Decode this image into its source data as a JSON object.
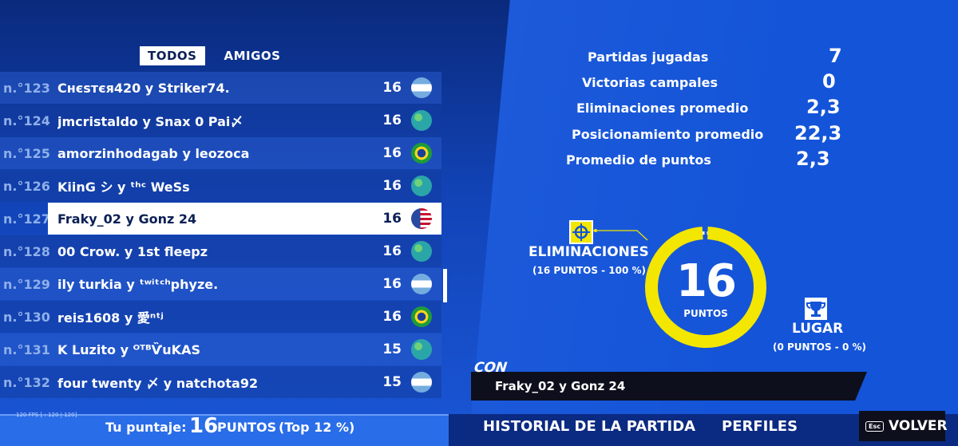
{
  "tabs": [
    {
      "label": "TODOS",
      "active": true
    },
    {
      "label": "AMIGOS",
      "active": false
    }
  ],
  "leaderboard": [
    {
      "rank": "n.°123",
      "names": "Снєѕтєя420 y Striker74.",
      "points": "16",
      "flag": "argentina-flag-icon"
    },
    {
      "rank": "n.°124",
      "names": "jmcristaldo y Snax 0 Pai〆",
      "points": "16",
      "flag": "globe-icon"
    },
    {
      "rank": "n.°125",
      "names": "amorzinhodagab y leozoca",
      "points": "16",
      "flag": "brazil-flag-icon"
    },
    {
      "rank": "n.°126",
      "names": "KiinG シ y ᵗʰᶜ WeSs",
      "points": "16",
      "flag": "globe-icon"
    },
    {
      "rank": "n.°127",
      "names": "Fraky_02 y Gonz 24",
      "points": "16",
      "flag": "usa-flag-icon",
      "highlighted": true
    },
    {
      "rank": "n.°128",
      "names": "00 Crow. y 1st fleepz",
      "points": "16",
      "flag": "globe-icon"
    },
    {
      "rank": "n.°129",
      "names": "ily turkia y ᵗʷⁱᵗᶜʰphyze.",
      "points": "16",
      "flag": "argentina-flag-icon"
    },
    {
      "rank": "n.°130",
      "names": "reis1608 y 愛ⁿᵗʲ",
      "points": "16",
      "flag": "brazil-flag-icon"
    },
    {
      "rank": "n.°131",
      "names": "K Luzito y ᴼᵀᴮѶuKAS",
      "points": "15",
      "flag": "globe-icon"
    },
    {
      "rank": "n.°132",
      "names": "four twenty 〆 y natchota92",
      "points": "15",
      "flag": "argentina-flag-icon"
    }
  ],
  "stats": [
    {
      "label": "Partidas jugadas",
      "value": "7"
    },
    {
      "label": "Victorias campales",
      "value": "0"
    },
    {
      "label": "Eliminaciones promedio",
      "value": "2,3"
    },
    {
      "label": "Posicionamiento promedio",
      "value": "22,3"
    },
    {
      "label": "Promedio de puntos",
      "value": "2,3"
    }
  ],
  "ring": {
    "value": "16",
    "unit": "PUNTOS",
    "elim_share": 1.0,
    "colors": {
      "fill": "#f3e600",
      "track": "#ffffff"
    }
  },
  "eliminations": {
    "label": "ELIMINACIONES",
    "sub": "(16 PUNTOS - 100 %)"
  },
  "placement": {
    "label": "LUGAR",
    "sub": "(0 PUNTOS - 0 %)"
  },
  "con": {
    "label": "CON",
    "name": "Fraky_02 y Gonz 24"
  },
  "score": {
    "label": "Tu puntaje:",
    "value": "16",
    "unit": "PUNTOS",
    "top": "(Top 12 %)"
  },
  "fps": "120 FPS [ : 120 | 120]",
  "buttons": {
    "history": "HISTORIAL DE LA PARTIDA",
    "profiles": "PERFILES",
    "back": "VOLVER",
    "esc": "Esc"
  },
  "colors": {
    "accent": "#f3e600",
    "panel": "#1454d8",
    "highlight_row": "#ffffff"
  }
}
